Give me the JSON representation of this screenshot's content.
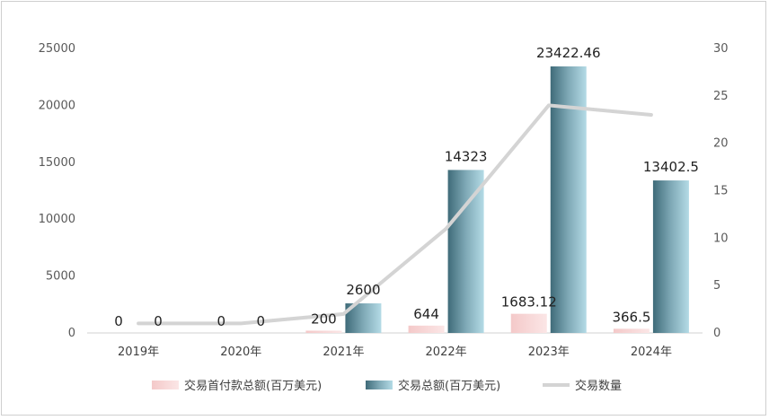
{
  "chart_data": {
    "type": "bar",
    "categories": [
      "2019年",
      "2020年",
      "2021年",
      "2022年",
      "2023年",
      "2024年"
    ],
    "series": [
      {
        "name": "交易首付款总额(百万美元)",
        "kind": "bar",
        "axis": "left",
        "values": [
          0,
          0,
          200,
          644,
          1683.12,
          366.5
        ],
        "labels": [
          "0",
          "0",
          "200",
          "644",
          "1683.12",
          "366.5"
        ],
        "color": "#f2b8b8"
      },
      {
        "name": "交易总额(百万美元)",
        "kind": "bar",
        "axis": "left",
        "values": [
          0,
          0,
          2600,
          14323,
          23422.46,
          13402.5
        ],
        "labels": [
          "0",
          "0",
          "2600",
          "14323",
          "23422.46",
          "13402.5"
        ],
        "color": "#6e9aa8"
      },
      {
        "name": "交易数量",
        "kind": "line",
        "axis": "right",
        "values": [
          1,
          1,
          2,
          11,
          24,
          23
        ],
        "color": "#d9d9d9"
      }
    ],
    "y_left": {
      "min": 0,
      "max": 25000,
      "ticks": [
        0,
        5000,
        10000,
        15000,
        20000,
        25000
      ]
    },
    "y_right": {
      "min": 0,
      "max": 30,
      "ticks": [
        0,
        5,
        10,
        15,
        20,
        25,
        30
      ]
    },
    "grid": false,
    "legend": "bottom"
  }
}
